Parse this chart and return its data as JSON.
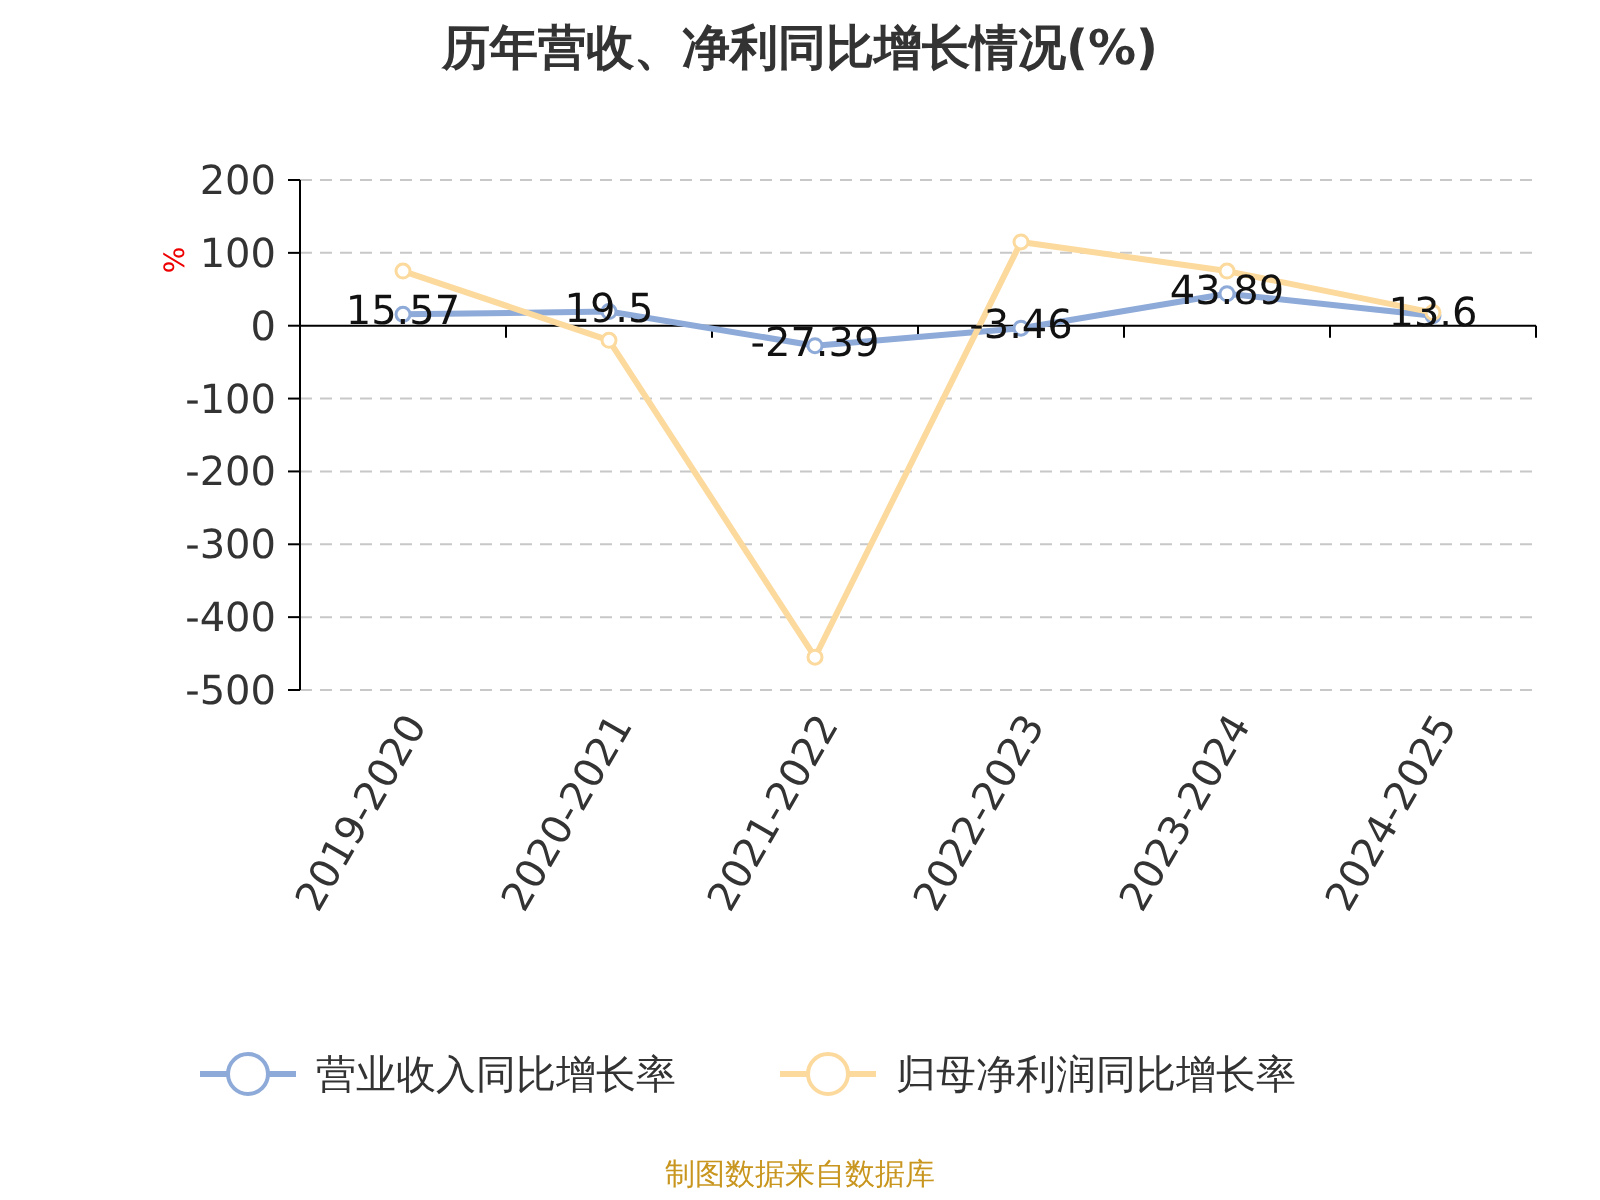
{
  "chart_data": {
    "type": "line",
    "title": "历年营收、净利同比增长情况(%)",
    "ylabel": "%",
    "categories": [
      "2019-2020",
      "2020-2021",
      "2021-2022",
      "2022-2023",
      "2023-2024",
      "2024-2025"
    ],
    "series": [
      {
        "name": "营业收入同比增长率",
        "color": "#8eaad8",
        "values": [
          15.57,
          19.5,
          -27.39,
          -3.46,
          43.89,
          13.6
        ],
        "value_labels": [
          "15.57",
          "19.5",
          "-27.39",
          "-3.46",
          "43.89",
          "13.6"
        ]
      },
      {
        "name": "归母净利润同比增长率",
        "color": "#fcd99c",
        "values": [
          75,
          -20,
          -455,
          115,
          75,
          18
        ]
      }
    ],
    "ylim": [
      -500,
      200
    ],
    "yticks": [
      -500,
      -400,
      -300,
      -200,
      -100,
      0,
      100,
      200
    ],
    "grid": "y",
    "legend": "bottom",
    "marker": "circle",
    "line_style": "solid",
    "annotations": [
      "制图数据来自数据库"
    ]
  }
}
